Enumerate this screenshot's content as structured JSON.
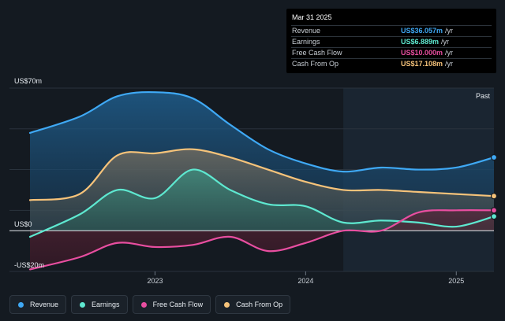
{
  "tooltip": {
    "date": "Mar 31 2025",
    "rows": [
      {
        "label": "Revenue",
        "value": "US$36.057m",
        "unit": "/yr",
        "color": "#3fa9f5"
      },
      {
        "label": "Earnings",
        "value": "US$6.889m",
        "unit": "/yr",
        "color": "#5ee8d0"
      },
      {
        "label": "Free Cash Flow",
        "value": "US$10.000m",
        "unit": "/yr",
        "color": "#e84ea0"
      },
      {
        "label": "Cash From Op",
        "value": "US$17.108m",
        "unit": "/yr",
        "color": "#f6c37a"
      }
    ]
  },
  "legend": [
    {
      "label": "Revenue",
      "color": "#3fa9f5"
    },
    {
      "label": "Earnings",
      "color": "#5ee8d0"
    },
    {
      "label": "Free Cash Flow",
      "color": "#e84ea0"
    },
    {
      "label": "Cash From Op",
      "color": "#f6c37a"
    }
  ],
  "chart_data": {
    "type": "area",
    "y_unit_labels": {
      "top": "US$70m",
      "zero": "US$0",
      "bottom": "-US$20m"
    },
    "ylim": [
      -20,
      70
    ],
    "xlim": [
      2022.17,
      2025.25
    ],
    "x_ticks": [
      {
        "value": 2023.0,
        "label": "2023"
      },
      {
        "value": 2024.0,
        "label": "2024"
      },
      {
        "value": 2025.0,
        "label": "2025"
      }
    ],
    "past_label": "Past",
    "past_start": 2024.25,
    "series": [
      {
        "name": "Revenue",
        "color": "#3fa9f5",
        "points": [
          [
            2022.17,
            48
          ],
          [
            2022.5,
            56
          ],
          [
            2022.75,
            66
          ],
          [
            2023.0,
            68
          ],
          [
            2023.25,
            65
          ],
          [
            2023.5,
            52
          ],
          [
            2023.75,
            40
          ],
          [
            2024.0,
            33
          ],
          [
            2024.25,
            29
          ],
          [
            2024.5,
            31
          ],
          [
            2024.75,
            30
          ],
          [
            2025.0,
            31
          ],
          [
            2025.25,
            36
          ]
        ]
      },
      {
        "name": "Earnings",
        "color": "#5ee8d0",
        "points": [
          [
            2022.17,
            -3
          ],
          [
            2022.5,
            8
          ],
          [
            2022.75,
            20
          ],
          [
            2023.0,
            16
          ],
          [
            2023.25,
            30
          ],
          [
            2023.5,
            20
          ],
          [
            2023.75,
            13
          ],
          [
            2024.0,
            12
          ],
          [
            2024.25,
            4
          ],
          [
            2024.5,
            5
          ],
          [
            2024.75,
            4
          ],
          [
            2025.0,
            2
          ],
          [
            2025.25,
            7
          ]
        ]
      },
      {
        "name": "Free Cash Flow",
        "color": "#e84ea0",
        "points": [
          [
            2022.17,
            -19
          ],
          [
            2022.5,
            -13
          ],
          [
            2022.75,
            -6
          ],
          [
            2023.0,
            -8
          ],
          [
            2023.25,
            -7
          ],
          [
            2023.5,
            -3
          ],
          [
            2023.75,
            -10
          ],
          [
            2024.0,
            -6
          ],
          [
            2024.25,
            0
          ],
          [
            2024.5,
            0
          ],
          [
            2024.75,
            9
          ],
          [
            2025.0,
            10
          ],
          [
            2025.25,
            10
          ]
        ]
      },
      {
        "name": "Cash From Op",
        "color": "#f6c37a",
        "points": [
          [
            2022.17,
            15
          ],
          [
            2022.5,
            18
          ],
          [
            2022.75,
            37
          ],
          [
            2023.0,
            38
          ],
          [
            2023.25,
            40
          ],
          [
            2023.5,
            36
          ],
          [
            2023.75,
            30
          ],
          [
            2024.0,
            24
          ],
          [
            2024.25,
            20
          ],
          [
            2024.5,
            20
          ],
          [
            2024.75,
            19
          ],
          [
            2025.0,
            18
          ],
          [
            2025.25,
            17
          ]
        ]
      }
    ]
  }
}
